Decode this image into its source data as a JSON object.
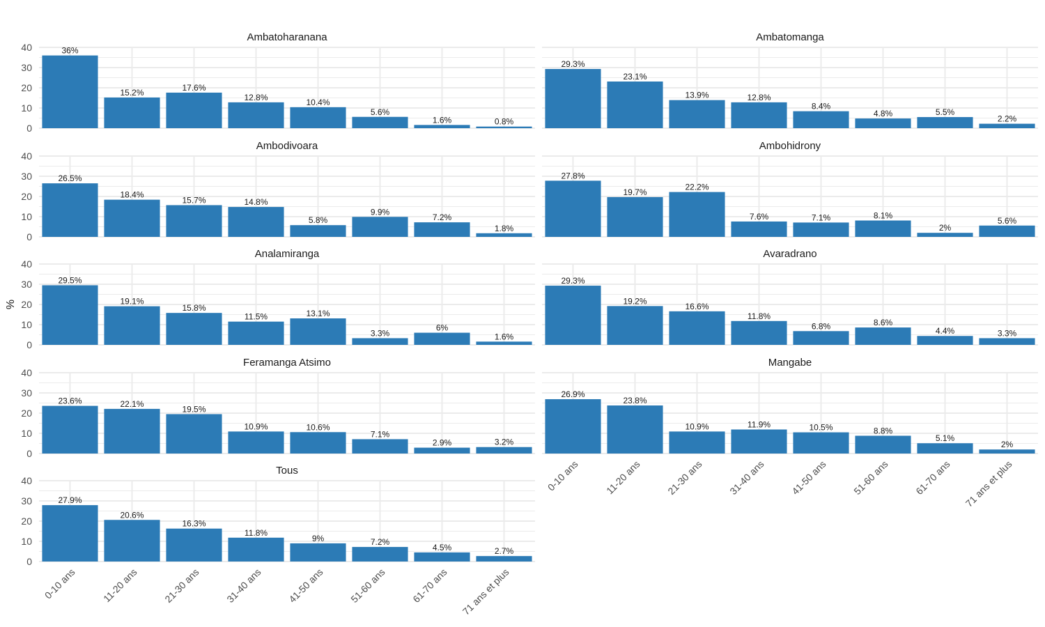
{
  "chart_data": {
    "type": "bar",
    "ylabel": "%",
    "xlabel": "",
    "ylim": [
      0,
      40
    ],
    "yticks": [
      0,
      10,
      20,
      30,
      40
    ],
    "grid": true,
    "bar_color": "#2c7bb6",
    "grid_color": "#ebebeb",
    "categories": [
      "0-10 ans",
      "11-20 ans",
      "21-30 ans",
      "31-40 ans",
      "41-50 ans",
      "51-60 ans",
      "61-70 ans",
      "71 ans et plus"
    ],
    "panels": [
      {
        "name": "Ambatoharanana",
        "values": [
          36,
          15.2,
          17.6,
          12.8,
          10.4,
          5.6,
          1.6,
          0.8
        ],
        "labels": [
          "36%",
          "15.2%",
          "17.6%",
          "12.8%",
          "10.4%",
          "5.6%",
          "1.6%",
          "0.8%"
        ]
      },
      {
        "name": "Ambatomanga",
        "values": [
          29.3,
          23.1,
          13.9,
          12.8,
          8.4,
          4.8,
          5.5,
          2.2
        ],
        "labels": [
          "29.3%",
          "23.1%",
          "13.9%",
          "12.8%",
          "8.4%",
          "4.8%",
          "5.5%",
          "2.2%"
        ]
      },
      {
        "name": "Ambodivoara",
        "values": [
          26.5,
          18.4,
          15.7,
          14.8,
          5.8,
          9.9,
          7.2,
          1.8
        ],
        "labels": [
          "26.5%",
          "18.4%",
          "15.7%",
          "14.8%",
          "5.8%",
          "9.9%",
          "7.2%",
          "1.8%"
        ]
      },
      {
        "name": "Ambohidrony",
        "values": [
          27.8,
          19.7,
          22.2,
          7.6,
          7.1,
          8.1,
          2,
          5.6
        ],
        "labels": [
          "27.8%",
          "19.7%",
          "22.2%",
          "7.6%",
          "7.1%",
          "8.1%",
          "2%",
          "5.6%"
        ]
      },
      {
        "name": "Analamiranga",
        "values": [
          29.5,
          19.1,
          15.8,
          11.5,
          13.1,
          3.3,
          6,
          1.6
        ],
        "labels": [
          "29.5%",
          "19.1%",
          "15.8%",
          "11.5%",
          "13.1%",
          "3.3%",
          "6%",
          "1.6%"
        ]
      },
      {
        "name": "Avaradrano",
        "values": [
          29.3,
          19.2,
          16.6,
          11.8,
          6.8,
          8.6,
          4.4,
          3.3
        ],
        "labels": [
          "29.3%",
          "19.2%",
          "16.6%",
          "11.8%",
          "6.8%",
          "8.6%",
          "4.4%",
          "3.3%"
        ]
      },
      {
        "name": "Feramanga Atsimo",
        "values": [
          23.6,
          22.1,
          19.5,
          10.9,
          10.6,
          7.1,
          2.9,
          3.2
        ],
        "labels": [
          "23.6%",
          "22.1%",
          "19.5%",
          "10.9%",
          "10.6%",
          "7.1%",
          "2.9%",
          "3.2%"
        ]
      },
      {
        "name": "Mangabe",
        "values": [
          26.9,
          23.8,
          10.9,
          11.9,
          10.5,
          8.8,
          5.1,
          2
        ],
        "labels": [
          "26.9%",
          "23.8%",
          "10.9%",
          "11.9%",
          "10.5%",
          "8.8%",
          "5.1%",
          "2%"
        ]
      },
      {
        "name": "Tous",
        "values": [
          27.9,
          20.6,
          16.3,
          11.8,
          9,
          7.2,
          4.5,
          2.7
        ],
        "labels": [
          "27.9%",
          "20.6%",
          "16.3%",
          "11.8%",
          "9%",
          "7.2%",
          "4.5%",
          "2.7%"
        ]
      }
    ]
  }
}
